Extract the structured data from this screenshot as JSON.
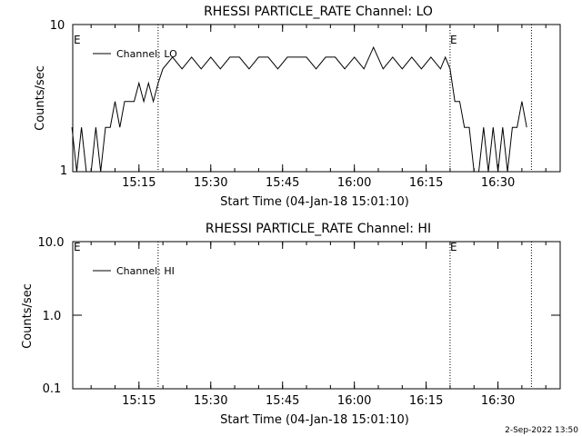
{
  "footer": {
    "timestamp": "2-Sep-2022 13:50"
  },
  "chart_data": [
    {
      "type": "line",
      "title": "RHESSI PARTICLE_RATE Channel: LO",
      "xlabel": "Start Time (04-Jan-18 15:01:10)",
      "ylabel": "Counts/sec",
      "y_scale": "log",
      "ylim": [
        1,
        10
      ],
      "y_tick_labels": [
        "1",
        "10"
      ],
      "xlim_minutes_since_start_label": "15:02 to 16:43",
      "x_tick_labels": [
        "15:15",
        "15:30",
        "15:45",
        "16:00",
        "16:15",
        "16:30"
      ],
      "legend": {
        "position": "top-left",
        "entries": [
          "Channel: LO"
        ]
      },
      "event_markers": {
        "label": "E",
        "times": [
          "15:19",
          "16:20"
        ]
      },
      "extra_dotted_line_time": "16:37",
      "series": [
        {
          "name": "Channel: LO",
          "x": [
            "15:01",
            "15:02",
            "15:03",
            "15:04",
            "15:05",
            "15:06",
            "15:07",
            "15:08",
            "15:09",
            "15:10",
            "15:11",
            "15:12",
            "15:13",
            "15:14",
            "15:15",
            "15:16",
            "15:17",
            "15:18",
            "15:19",
            "15:20",
            "15:22",
            "15:24",
            "15:26",
            "15:28",
            "15:30",
            "15:32",
            "15:34",
            "15:36",
            "15:38",
            "15:40",
            "15:42",
            "15:44",
            "15:46",
            "15:48",
            "15:50",
            "15:52",
            "15:54",
            "15:56",
            "15:58",
            "16:00",
            "16:02",
            "16:04",
            "16:06",
            "16:08",
            "16:10",
            "16:12",
            "16:14",
            "16:16",
            "16:18",
            "16:19",
            "16:20",
            "16:21",
            "16:22",
            "16:23",
            "16:24",
            "16:25",
            "16:26",
            "16:27",
            "16:28",
            "16:29",
            "16:30",
            "16:31",
            "16:32",
            "16:33",
            "16:34",
            "16:35",
            "16:36"
          ],
          "y": [
            2,
            1,
            2,
            1,
            1,
            2,
            1,
            2,
            2,
            3,
            2,
            3,
            3,
            3,
            4,
            3,
            4,
            3,
            4,
            5,
            6,
            5,
            6,
            5,
            6,
            5,
            6,
            6,
            5,
            6,
            6,
            5,
            6,
            6,
            6,
            5,
            6,
            6,
            5,
            6,
            5,
            7,
            5,
            6,
            5,
            6,
            5,
            6,
            5,
            6,
            5,
            3,
            3,
            2,
            2,
            1,
            1,
            2,
            1,
            2,
            1,
            2,
            1,
            2,
            2,
            3,
            2
          ]
        }
      ]
    },
    {
      "type": "line",
      "title": "RHESSI PARTICLE_RATE Channel: HI",
      "xlabel": "Start Time (04-Jan-18 15:01:10)",
      "ylabel": "Counts/sec",
      "y_scale": "log",
      "ylim": [
        0.1,
        10
      ],
      "y_tick_labels": [
        "0.1",
        "1.0",
        "10.0"
      ],
      "x_tick_labels": [
        "15:15",
        "15:30",
        "15:45",
        "16:00",
        "16:15",
        "16:30"
      ],
      "legend": {
        "position": "top-left",
        "entries": [
          "Channel: HI"
        ]
      },
      "event_markers": {
        "label": "E",
        "times": [
          "15:19",
          "16:20"
        ]
      },
      "extra_dotted_line_time": "16:37",
      "series": [
        {
          "name": "Channel: HI",
          "x": [],
          "y": []
        }
      ]
    }
  ]
}
